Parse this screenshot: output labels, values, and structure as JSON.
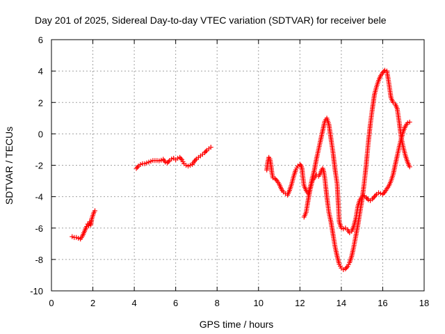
{
  "chart_data": {
    "type": "scatter",
    "title": "Day 201 of 2025, Sidereal Day-to-day VTEC variation (SDTVAR) for receiver bele",
    "xlabel": "GPS time / hours",
    "ylabel": "SDTVAR / TECUs",
    "xlim": [
      0,
      18
    ],
    "ylim": [
      -10,
      6
    ],
    "x_ticks": [
      0,
      2,
      4,
      6,
      8,
      10,
      12,
      14,
      16,
      18
    ],
    "y_ticks": [
      -10,
      -8,
      -6,
      -4,
      -2,
      0,
      2,
      4,
      6
    ],
    "x_tick_labels": [
      "0",
      "2",
      "4",
      "6",
      "8",
      "10",
      "12",
      "14",
      "16",
      "18"
    ],
    "y_tick_labels": [
      "-10",
      "-8",
      "-6",
      "-4",
      "-2",
      "0",
      "2",
      "4",
      "6"
    ],
    "grid": true,
    "marker": "plus",
    "color": "#ff0000",
    "series": [
      {
        "name": "segment-1",
        "x": [
          1.0,
          1.1,
          1.2,
          1.3,
          1.4,
          1.5,
          1.6,
          1.7,
          1.75,
          1.8,
          1.85,
          1.9,
          1.95,
          2.0,
          2.05,
          2.1
        ],
        "y": [
          -6.55,
          -6.6,
          -6.6,
          -6.65,
          -6.7,
          -6.5,
          -6.2,
          -5.9,
          -5.75,
          -5.85,
          -5.6,
          -5.8,
          -5.4,
          -5.2,
          -5.0,
          -4.9
        ]
      },
      {
        "name": "segment-2",
        "x": [
          4.1,
          4.2,
          4.3,
          4.4,
          4.5,
          4.6,
          4.7,
          4.8,
          4.9,
          5.0,
          5.1,
          5.2,
          5.3,
          5.4,
          5.5,
          5.6,
          5.7,
          5.8,
          5.9,
          6.0,
          6.1,
          6.2,
          6.3,
          6.4,
          6.5,
          6.6,
          6.7,
          6.8,
          6.9,
          7.0,
          7.1,
          7.2,
          7.3,
          7.4,
          7.5,
          7.6,
          7.7
        ],
        "y": [
          -2.2,
          -2.05,
          -1.95,
          -1.9,
          -1.9,
          -1.85,
          -1.8,
          -1.75,
          -1.7,
          -1.7,
          -1.7,
          -1.72,
          -1.68,
          -1.62,
          -1.8,
          -1.85,
          -1.7,
          -1.6,
          -1.55,
          -1.65,
          -1.55,
          -1.5,
          -1.65,
          -1.9,
          -2.0,
          -2.05,
          -2.0,
          -1.95,
          -1.75,
          -1.6,
          -1.5,
          -1.4,
          -1.3,
          -1.2,
          -1.05,
          -0.95,
          -0.85
        ]
      },
      {
        "name": "segment-3",
        "x": [
          10.4,
          10.45,
          10.5,
          10.55,
          10.6,
          10.65,
          10.7,
          10.8,
          10.9,
          11.0,
          11.1,
          11.2,
          11.3,
          11.4,
          11.5,
          11.6,
          11.7,
          11.8,
          11.9,
          12.0,
          12.05,
          12.1,
          12.15,
          12.2,
          12.3,
          12.4,
          12.5,
          12.6,
          12.7,
          12.8,
          12.9,
          13.0,
          13.1,
          13.2,
          13.3,
          13.4,
          13.5,
          13.6,
          13.7,
          13.8,
          13.9,
          14.0,
          14.1,
          14.2,
          14.3,
          14.4,
          14.5,
          14.6,
          14.7,
          14.8,
          14.9,
          15.0,
          15.1,
          15.2,
          15.3,
          15.4,
          15.5,
          15.6,
          15.7,
          15.8,
          15.9,
          16.0,
          16.1,
          16.2,
          16.3,
          16.4,
          16.5,
          16.6,
          16.7,
          16.8,
          16.9,
          17.0,
          17.1,
          17.2,
          17.3
        ],
        "y": [
          -2.3,
          -1.8,
          -1.5,
          -1.6,
          -2.0,
          -2.5,
          -2.8,
          -2.85,
          -3.0,
          -3.2,
          -3.5,
          -3.7,
          -3.8,
          -3.9,
          -3.6,
          -3.2,
          -2.7,
          -2.3,
          -2.05,
          -1.95,
          -2.0,
          -2.2,
          -2.8,
          -3.3,
          -3.6,
          -3.8,
          -3.4,
          -2.8,
          -2.3,
          -1.6,
          -1.0,
          -0.4,
          0.2,
          0.8,
          1.0,
          0.6,
          -0.3,
          -1.2,
          -2.3,
          -3.2,
          -5.6,
          -6.0,
          -6.05,
          -6.0,
          -6.1,
          -6.3,
          -6.2,
          -5.9,
          -5.4,
          -4.6,
          -4.2,
          -4.0,
          -3.95,
          -4.05,
          -4.2,
          -4.25,
          -4.15,
          -4.0,
          -3.85,
          -3.75,
          -3.8,
          -3.85,
          -3.7,
          -3.5,
          -3.3,
          -3.0,
          -2.6,
          -2.0,
          -1.4,
          -0.8,
          -0.3,
          0.2,
          0.5,
          0.7,
          0.75
        ]
      },
      {
        "name": "segment-4",
        "x": [
          12.2,
          12.3,
          12.4,
          12.5,
          12.6,
          12.7,
          12.8,
          12.9,
          13.0,
          13.05,
          13.1,
          13.15,
          13.2,
          13.25,
          13.3,
          13.35,
          13.4,
          13.5,
          13.6,
          13.7,
          13.8,
          13.9,
          14.0,
          14.1,
          14.2,
          14.3,
          14.4,
          14.5,
          14.6,
          14.7,
          14.8,
          14.9,
          15.0,
          15.1,
          15.2,
          15.3,
          15.4,
          15.5,
          15.6,
          15.7,
          15.8,
          15.9,
          16.0,
          16.1,
          16.2,
          16.3,
          16.4,
          16.5,
          16.6,
          16.7,
          16.8,
          16.9,
          17.0,
          17.1,
          17.2,
          17.3
        ],
        "y": [
          -5.3,
          -5.0,
          -4.2,
          -3.5,
          -3.0,
          -2.8,
          -2.6,
          -2.7,
          -2.5,
          -2.3,
          -2.2,
          -2.4,
          -2.8,
          -3.4,
          -4.0,
          -4.5,
          -5.0,
          -5.6,
          -6.4,
          -7.2,
          -7.8,
          -8.3,
          -8.55,
          -8.65,
          -8.6,
          -8.45,
          -8.2,
          -7.8,
          -7.2,
          -6.5,
          -5.8,
          -5.0,
          -4.2,
          -3.2,
          -2.0,
          -0.6,
          0.6,
          1.6,
          2.5,
          3.0,
          3.4,
          3.7,
          3.9,
          4.05,
          4.0,
          3.2,
          2.3,
          2.0,
          1.9,
          1.6,
          0.7,
          -0.3,
          -0.9,
          -1.4,
          -1.8,
          -2.1
        ]
      }
    ]
  }
}
